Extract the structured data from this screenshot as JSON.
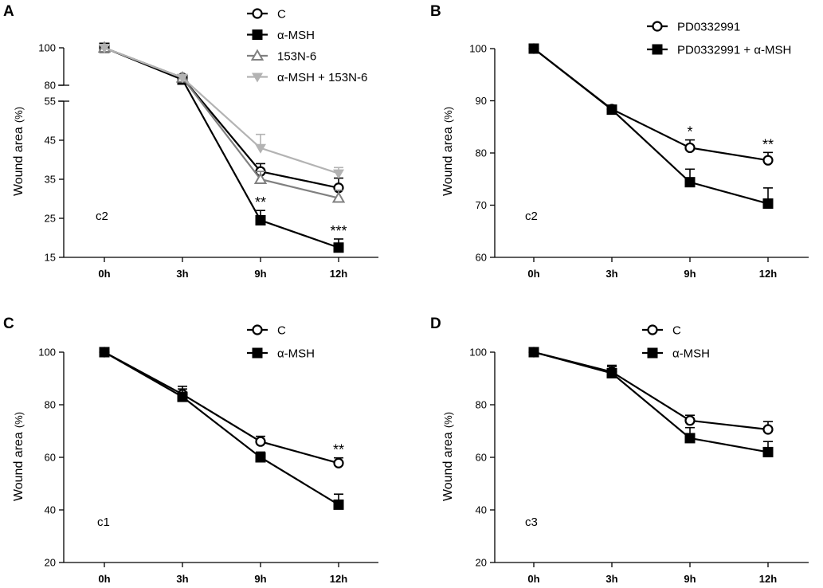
{
  "chart_data": [
    {
      "panel": "A",
      "type": "line",
      "x": [
        "0h",
        "3h",
        "9h",
        "12h"
      ],
      "ylabel": "Wound area",
      "yunit": "(%)",
      "annotation": "c2",
      "axis_break": true,
      "ylim_lower": [
        15,
        55
      ],
      "ylim_upper": [
        80,
        100
      ],
      "yticks_lower": [
        15,
        25,
        35,
        45,
        55
      ],
      "yticks_upper": [
        80,
        100
      ],
      "series": [
        {
          "name": "C",
          "marker": "circle-open",
          "color": "#000000",
          "values": [
            100,
            84,
            37,
            32.8
          ],
          "errors": [
            1.2,
            1.5,
            2.0,
            2.5
          ]
        },
        {
          "name": "α-MSH",
          "marker": "square-filled",
          "color": "#000000",
          "values": [
            100,
            83,
            24.5,
            17.5
          ],
          "errors": [
            1.2,
            1.5,
            2.5,
            2.2
          ]
        },
        {
          "name": "153N-6",
          "marker": "triangle-up-open",
          "color": "#808080",
          "values": [
            100,
            84,
            35,
            30.2
          ],
          "errors": [
            1.2,
            1.5,
            2.0,
            2.0
          ]
        },
        {
          "name": "α-MSH + 153N-6",
          "marker": "triangle-down-filled",
          "color": "#b3b3b3",
          "values": [
            100,
            84,
            43,
            36.5
          ],
          "errors": [
            1.2,
            1.5,
            3.5,
            1.5
          ]
        }
      ],
      "significance": [
        {
          "x": "9h",
          "label": "**"
        },
        {
          "x": "12h",
          "label": "***"
        }
      ]
    },
    {
      "panel": "B",
      "type": "line",
      "x": [
        "0h",
        "3h",
        "9h",
        "12h"
      ],
      "ylabel": "Wound area",
      "yunit": "(%)",
      "annotation": "c2",
      "ylim": [
        60,
        100
      ],
      "yticks": [
        60,
        70,
        80,
        90,
        100
      ],
      "series": [
        {
          "name": "PD0332991",
          "marker": "circle-open",
          "color": "#000000",
          "values": [
            100,
            88.4,
            81,
            78.6
          ],
          "errors": [
            0.5,
            0.5,
            1.5,
            1.5
          ]
        },
        {
          "name": "PD0332991 + α-MSH",
          "marker": "square-filled",
          "color": "#000000",
          "values": [
            100,
            88.3,
            74.4,
            70.3
          ],
          "errors": [
            0.5,
            0.5,
            2.5,
            3.0
          ]
        }
      ],
      "significance": [
        {
          "x": "9h",
          "label": "*"
        },
        {
          "x": "12h",
          "label": "**"
        }
      ]
    },
    {
      "panel": "C",
      "type": "line",
      "x": [
        "0h",
        "3h",
        "9h",
        "12h"
      ],
      "ylabel": "Wound area",
      "yunit": "(%)",
      "annotation": "c1",
      "ylim": [
        20,
        100
      ],
      "yticks": [
        20,
        40,
        60,
        80,
        100
      ],
      "series": [
        {
          "name": "C",
          "marker": "circle-open",
          "color": "#000000",
          "values": [
            100,
            84,
            66,
            57.8
          ],
          "errors": [
            1.0,
            3.0,
            2.0,
            2.0
          ]
        },
        {
          "name": "α-MSH",
          "marker": "square-filled",
          "color": "#000000",
          "values": [
            100,
            83,
            60,
            42
          ],
          "errors": [
            1.0,
            3.0,
            2.0,
            4.0
          ]
        }
      ],
      "significance": [
        {
          "x": "12h",
          "label": "**"
        }
      ]
    },
    {
      "panel": "D",
      "type": "line",
      "x": [
        "0h",
        "3h",
        "9h",
        "12h"
      ],
      "ylabel": "Wound area",
      "yunit": "(%)",
      "annotation": "c3",
      "ylim": [
        20,
        100
      ],
      "yticks": [
        20,
        40,
        60,
        80,
        100
      ],
      "series": [
        {
          "name": "C",
          "marker": "circle-open",
          "color": "#000000",
          "values": [
            100,
            92.5,
            74,
            70.6
          ],
          "errors": [
            1.0,
            2.5,
            2.0,
            3.0
          ]
        },
        {
          "name": "α-MSH",
          "marker": "square-filled",
          "color": "#000000",
          "values": [
            100,
            92,
            67.3,
            62
          ],
          "errors": [
            1.0,
            2.5,
            4.0,
            4.0
          ]
        }
      ],
      "significance": []
    }
  ]
}
